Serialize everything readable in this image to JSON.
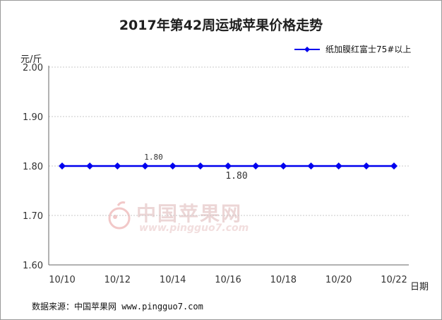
{
  "chart_data": {
    "type": "line",
    "title": "2017年第42周运城苹果价格走势",
    "ylabel": "元/斤",
    "xlabel": "日期",
    "ylim": [
      1.6,
      2.0
    ],
    "yticks": [
      "2.00",
      "1.90",
      "1.80",
      "1.70",
      "1.60"
    ],
    "categories": [
      "10/10",
      "10/11",
      "10/12",
      "10/13",
      "10/14",
      "10/15",
      "10/16",
      "10/17",
      "10/18",
      "10/19",
      "10/20",
      "10/21",
      "10/22"
    ],
    "xtick_labels": [
      "10/10",
      "10/12",
      "10/14",
      "10/16",
      "10/18",
      "10/20",
      "10/22"
    ],
    "series": [
      {
        "name": "纸加膜红富士75#以上",
        "color": "#0000ee",
        "values": [
          1.8,
          1.8,
          1.8,
          1.8,
          1.8,
          1.8,
          1.8,
          1.8,
          1.8,
          1.8,
          1.8,
          1.8,
          1.8
        ]
      }
    ],
    "annotations": [
      {
        "category": "10/13",
        "text": "1.80",
        "placement": "above"
      },
      {
        "category": "10/16",
        "text": "1.80",
        "placement": "below"
      }
    ],
    "grid": true,
    "legend_position": "top-right"
  },
  "source": {
    "label": "数据来源：中国苹果网",
    "url": "www.pingguo7.com"
  },
  "watermark": {
    "cn": "中国苹果网",
    "en": "www.pingguo7.com"
  }
}
